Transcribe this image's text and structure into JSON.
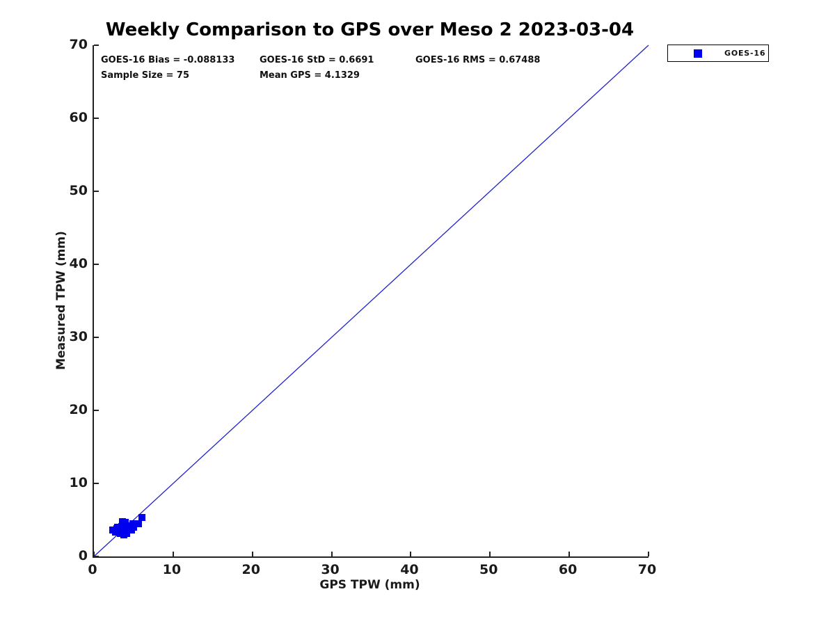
{
  "title": "Weekly Comparison to GPS over Meso 2 2023-03-04",
  "annotations": {
    "bias": "GOES-16 Bias = -0.088133",
    "std": "GOES-16 StD = 0.6691",
    "rms": "GOES-16 RMS = 0.67488",
    "sample_size": "Sample Size = 75",
    "mean_gps": "Mean GPS = 4.1329"
  },
  "legend": {
    "position": "top-right",
    "entries": [
      {
        "label": "GOES-16",
        "marker": "square",
        "marker_color": "#0000ee"
      }
    ]
  },
  "colors": {
    "marker": "#0000ee",
    "reference_line": "#2020cd",
    "axis": "#222222",
    "text": "#111111",
    "background": "#ffffff"
  },
  "chart_data": {
    "type": "scatter",
    "title": "Weekly Comparison to GPS over Meso 2 2023-03-04",
    "xlabel": "GPS TPW (mm)",
    "ylabel": "Measured TPW (mm)",
    "xlim": [
      0,
      70
    ],
    "ylim": [
      0,
      70
    ],
    "xticks": [
      0,
      10,
      20,
      30,
      40,
      50,
      60,
      70
    ],
    "yticks": [
      0,
      10,
      20,
      30,
      40,
      50,
      60,
      70
    ],
    "grid": false,
    "legend_position": "top-right outside",
    "series": [
      {
        "name": "GOES-16",
        "marker": "square",
        "color": "#0000ee",
        "points": [
          [
            2.33,
            3.58
          ],
          [
            2.68,
            3.29
          ],
          [
            2.94,
            3.77
          ],
          [
            3.03,
            3.96
          ],
          [
            3.38,
            3.19
          ],
          [
            3.47,
            4.05
          ],
          [
            3.56,
            4.72
          ],
          [
            3.82,
            3.0
          ],
          [
            3.91,
            4.15
          ],
          [
            3.91,
            4.62
          ],
          [
            4.17,
            3.19
          ],
          [
            4.35,
            3.96
          ],
          [
            4.61,
            4.15
          ],
          [
            4.7,
            3.58
          ],
          [
            4.88,
            4.43
          ],
          [
            5.05,
            3.96
          ],
          [
            5.58,
            4.43
          ],
          [
            6.02,
            5.29
          ]
        ]
      }
    ],
    "reference_line": {
      "from": [
        0,
        0
      ],
      "to": [
        70,
        70
      ],
      "color": "#2020cd"
    },
    "stats": {
      "bias": -0.088133,
      "std": 0.6691,
      "rms": 0.67488,
      "sample_size": 75,
      "mean_gps": 4.1329
    }
  }
}
